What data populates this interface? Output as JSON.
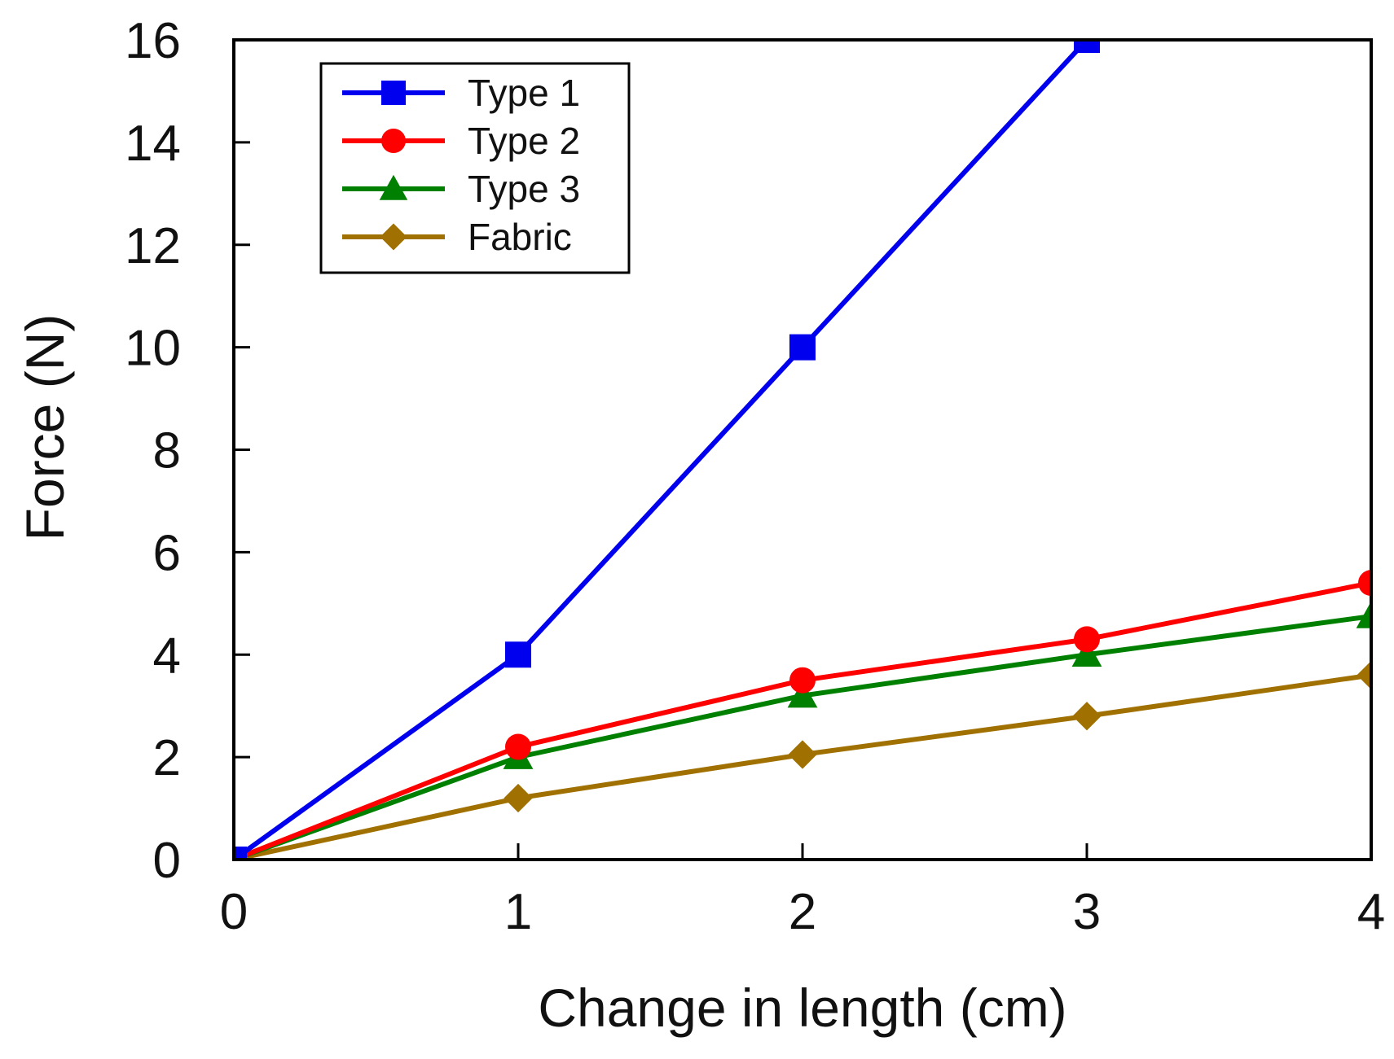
{
  "chart_data": {
    "type": "line",
    "title": "",
    "xlabel": "Change in length (cm)",
    "ylabel": "Force (N)",
    "xlim": [
      0,
      4
    ],
    "ylim": [
      0,
      16
    ],
    "x_ticks": [
      "0",
      "1",
      "2",
      "3",
      "4"
    ],
    "y_ticks": [
      "0",
      "2",
      "4",
      "6",
      "8",
      "10",
      "12",
      "14",
      "16"
    ],
    "grid": false,
    "legend_position": "top-left",
    "x": [
      0,
      1,
      2,
      3,
      4
    ],
    "series": [
      {
        "name": "Type 1",
        "color": "#0000ee",
        "marker": "square",
        "x": [
          0,
          1,
          2,
          3
        ],
        "values": [
          0,
          4.0,
          10.0,
          16.0
        ]
      },
      {
        "name": "Type 2",
        "color": "#ff0000",
        "marker": "circle",
        "x": [
          0,
          1,
          2,
          3,
          4
        ],
        "values": [
          0,
          2.2,
          3.5,
          4.3,
          5.4
        ]
      },
      {
        "name": "Type 3",
        "color": "#008000",
        "marker": "triangle",
        "x": [
          0,
          1,
          2,
          3,
          4
        ],
        "values": [
          0,
          2.0,
          3.2,
          4.0,
          4.75
        ]
      },
      {
        "name": "Fabric",
        "color": "#a07000",
        "marker": "diamond",
        "x": [
          0,
          1,
          2,
          3,
          4
        ],
        "values": [
          0,
          1.2,
          2.05,
          2.8,
          3.6
        ]
      }
    ]
  }
}
